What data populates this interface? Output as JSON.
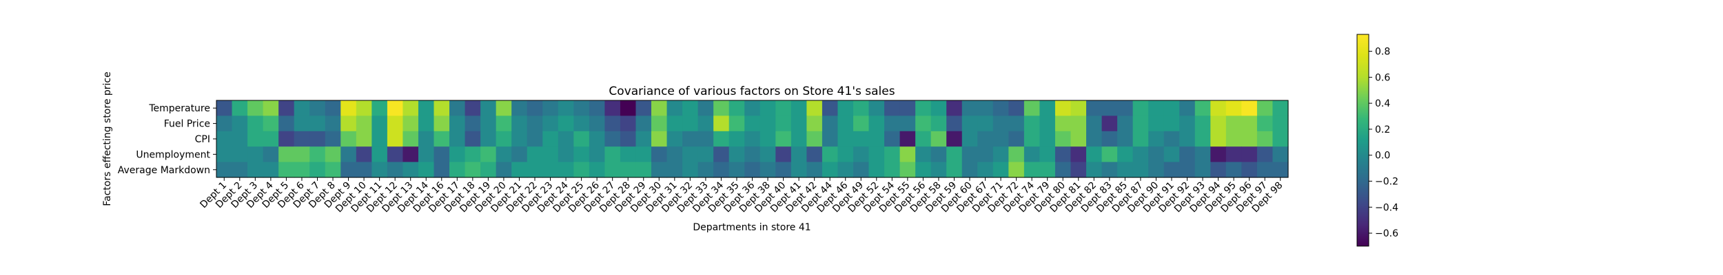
{
  "chart_data": {
    "type": "heatmap",
    "title": "Covariance of various factors on Store 41's sales",
    "xlabel": "Departments in store 41",
    "ylabel": "Factors effecting store price",
    "rows": [
      "Temperature",
      "Fuel Price",
      "CPI",
      "Unemployment",
      "Average Markdown"
    ],
    "columns": [
      "Dept 1",
      "Dept 2",
      "Dept 3",
      "Dept 4",
      "Dept 5",
      "Dept 6",
      "Dept 7",
      "Dept 8",
      "Dept 9",
      "Dept 10",
      "Dept 11",
      "Dept 12",
      "Dept 13",
      "Dept 14",
      "Dept 16",
      "Dept 17",
      "Dept 18",
      "Dept 19",
      "Dept 20",
      "Dept 21",
      "Dept 22",
      "Dept 23",
      "Dept 24",
      "Dept 25",
      "Dept 26",
      "Dept 27",
      "Dept 28",
      "Dept 29",
      "Dept 30",
      "Dept 31",
      "Dept 32",
      "Dept 33",
      "Dept 34",
      "Dept 35",
      "Dept 36",
      "Dept 38",
      "Dept 40",
      "Dept 41",
      "Dept 42",
      "Dept 44",
      "Dept 46",
      "Dept 49",
      "Dept 52",
      "Dept 54",
      "Dept 55",
      "Dept 56",
      "Dept 58",
      "Dept 59",
      "Dept 60",
      "Dept 67",
      "Dept 71",
      "Dept 72",
      "Dept 74",
      "Dept 79",
      "Dept 80",
      "Dept 81",
      "Dept 82",
      "Dept 83",
      "Dept 85",
      "Dept 87",
      "Dept 90",
      "Dept 91",
      "Dept 92",
      "Dept 93",
      "Dept 94",
      "Dept 95",
      "Dept 96",
      "Dept 97",
      "Dept 98"
    ],
    "values": [
      [
        -0.3,
        0.2,
        0.4,
        0.5,
        -0.4,
        0,
        -0.1,
        -0.2,
        0.8,
        0.6,
        0.2,
        0.9,
        0.6,
        0.1,
        0.6,
        -0.1,
        -0.4,
        0,
        0.5,
        -0.1,
        -0.2,
        -0.1,
        0,
        -0.1,
        -0.2,
        -0.5,
        -0.7,
        -0.3,
        0.5,
        0,
        0.1,
        -0.1,
        0.4,
        0.2,
        0,
        0.1,
        0.2,
        0.1,
        0.6,
        -0.3,
        0.1,
        0.2,
        0,
        -0.3,
        -0.3,
        0.2,
        0.1,
        -0.5,
        -0.1,
        -0.1,
        -0.2,
        -0.3,
        0.4,
        0.1,
        0.7,
        0.6,
        -0.2,
        -0.2,
        -0.2,
        0.2,
        0.1,
        0.1,
        -0.1,
        0.3,
        0.7,
        0.8,
        0.9,
        0.4,
        0.2
      ],
      [
        -0.1,
        0,
        0.2,
        0.3,
        -0.2,
        0,
        0,
        -0.1,
        0.6,
        0.5,
        0.1,
        0.7,
        0.5,
        0.1,
        0.5,
        0,
        -0.2,
        0,
        0.3,
        0,
        -0.1,
        0,
        0.1,
        0,
        -0.1,
        -0.3,
        -0.4,
        -0.1,
        0.4,
        0.1,
        0.1,
        0,
        0.6,
        0.3,
        0.1,
        0.1,
        0.2,
        0.1,
        0.5,
        -0.1,
        0.1,
        0.3,
        0.1,
        -0.1,
        -0.1,
        0.3,
        0.2,
        -0.3,
        0,
        0,
        -0.1,
        -0.1,
        0.2,
        0.1,
        0.5,
        0.5,
        -0.1,
        -0.5,
        -0.1,
        0.2,
        0.1,
        0.1,
        0,
        0.2,
        0.6,
        0.5,
        0.5,
        0.3,
        0.2
      ],
      [
        0,
        0,
        0.2,
        0.2,
        -0.4,
        -0.3,
        -0.3,
        -0.2,
        0.4,
        0.5,
        0.1,
        0.7,
        0.4,
        0,
        0.3,
        0,
        -0.3,
        0,
        0.2,
        0,
        -0.1,
        0.1,
        0,
        0.2,
        0,
        -0.2,
        -0.3,
        0,
        0.5,
        0,
        -0.1,
        -0.1,
        0.2,
        0.1,
        0,
        0.1,
        0.3,
        0.1,
        0.4,
        -0.1,
        0.1,
        0.1,
        0.1,
        -0.2,
        -0.6,
        0.2,
        0.4,
        -0.6,
        0,
        -0.1,
        -0.1,
        -0.2,
        0.2,
        0.1,
        0.4,
        0.5,
        -0.1,
        -0.2,
        -0.1,
        0.2,
        0,
        -0.1,
        0,
        0.2,
        0.6,
        0.5,
        0.5,
        0.4,
        0.2
      ],
      [
        0,
        0,
        0,
        -0.1,
        0.4,
        0.4,
        0.3,
        0.4,
        -0.1,
        -0.4,
        0.1,
        -0.4,
        -0.6,
        0,
        -0.2,
        0.1,
        0.2,
        0.3,
        0,
        -0.1,
        0.1,
        0.1,
        0,
        0.1,
        0,
        0.2,
        0.1,
        0.1,
        -0.2,
        -0.1,
        0,
        0,
        -0.3,
        0,
        -0.1,
        0,
        -0.4,
        0,
        -0.3,
        0.2,
        0.1,
        0,
        0.1,
        0.2,
        0.5,
        0,
        -0.1,
        0.2,
        -0.1,
        -0.1,
        0,
        0.4,
        0,
        0.1,
        -0.3,
        -0.5,
        0.1,
        0.3,
        0.1,
        0,
        -0.1,
        0,
        -0.2,
        -0.1,
        -0.6,
        -0.5,
        -0.5,
        -0.3,
        -0.1
      ],
      [
        -0.1,
        -0.1,
        0,
        0,
        0.3,
        0.3,
        0.2,
        0.3,
        -0.2,
        -0.2,
        0,
        -0.1,
        0,
        0.1,
        -0.2,
        0.2,
        0.3,
        0.2,
        -0.1,
        0.1,
        0.1,
        0.1,
        0.1,
        0.2,
        0.1,
        0.2,
        0.2,
        0.2,
        -0.1,
        -0.1,
        0,
        -0.1,
        -0.2,
        -0.1,
        -0.2,
        -0.1,
        -0.2,
        0,
        -0.1,
        0.1,
        0,
        -0.1,
        0.1,
        0.2,
        0.4,
        0.1,
        0,
        0.2,
        -0.1,
        0,
        0.1,
        0.5,
        0.2,
        0.2,
        -0.2,
        -0.4,
        0,
        -0.1,
        0,
        0,
        -0.1,
        -0.2,
        -0.2,
        -0.1,
        -0.3,
        -0.2,
        -0.3,
        -0.2,
        -0.2
      ]
    ],
    "vmin": -0.7,
    "vmax": 0.93,
    "colorbar_ticks": [
      -0.6,
      -0.4,
      -0.2,
      0.0,
      0.2,
      0.4,
      0.6,
      0.8
    ],
    "colormap": "viridis"
  }
}
